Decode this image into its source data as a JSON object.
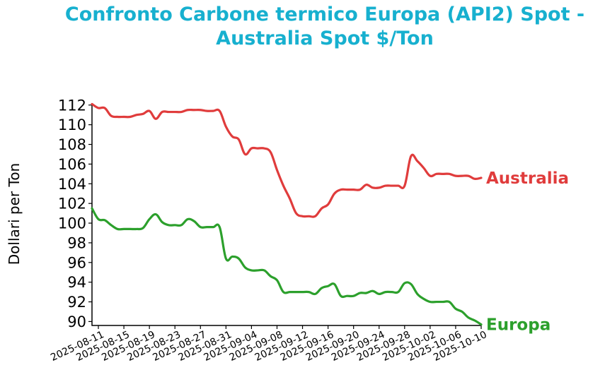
{
  "chart_data": {
    "type": "line",
    "title_line1": "Confronto Carbone termico Europa (API2) Spot -",
    "title_line2": "Australia Spot $/Ton",
    "ylabel": "Dollari per Ton",
    "xlabel": "",
    "ylim": [
      89.6,
      112.2
    ],
    "xlim": [
      "2025-08-10",
      "2025-10-10"
    ],
    "y_ticks": [
      90,
      92,
      94,
      96,
      98,
      100,
      102,
      104,
      106,
      108,
      110,
      112
    ],
    "x_ticks": [
      "2025-08-11",
      "2025-08-15",
      "2025-08-19",
      "2025-08-23",
      "2025-08-27",
      "2025-08-31",
      "2025-09-04",
      "2025-09-08",
      "2025-09-12",
      "2025-09-16",
      "2025-09-20",
      "2025-09-24",
      "2025-09-28",
      "2025-10-02",
      "2025-10-06",
      "2025-10-10"
    ],
    "grid": false,
    "legend": "none",
    "series": [
      {
        "name": "Australia",
        "color": "#e03c3c",
        "points": [
          [
            "2025-08-10",
            112.1
          ],
          [
            "2025-08-11",
            111.7
          ],
          [
            "2025-08-12",
            111.7
          ],
          [
            "2025-08-13",
            110.9
          ],
          [
            "2025-08-14",
            110.8
          ],
          [
            "2025-08-15",
            110.8
          ],
          [
            "2025-08-16",
            110.8
          ],
          [
            "2025-08-17",
            111.0
          ],
          [
            "2025-08-18",
            111.1
          ],
          [
            "2025-08-19",
            111.4
          ],
          [
            "2025-08-20",
            110.6
          ],
          [
            "2025-08-21",
            111.3
          ],
          [
            "2025-08-22",
            111.3
          ],
          [
            "2025-08-23",
            111.3
          ],
          [
            "2025-08-24",
            111.3
          ],
          [
            "2025-08-25",
            111.5
          ],
          [
            "2025-08-26",
            111.5
          ],
          [
            "2025-08-27",
            111.5
          ],
          [
            "2025-08-28",
            111.4
          ],
          [
            "2025-08-29",
            111.4
          ],
          [
            "2025-08-30",
            111.4
          ],
          [
            "2025-08-31",
            109.8
          ],
          [
            "2025-09-01",
            108.8
          ],
          [
            "2025-09-02",
            108.5
          ],
          [
            "2025-09-03",
            107.0
          ],
          [
            "2025-09-04",
            107.6
          ],
          [
            "2025-09-05",
            107.6
          ],
          [
            "2025-09-06",
            107.6
          ],
          [
            "2025-09-07",
            107.2
          ],
          [
            "2025-09-08",
            105.4
          ],
          [
            "2025-09-09",
            103.8
          ],
          [
            "2025-09-10",
            102.5
          ],
          [
            "2025-09-11",
            101.0
          ],
          [
            "2025-09-12",
            100.7
          ],
          [
            "2025-09-13",
            100.7
          ],
          [
            "2025-09-14",
            100.7
          ],
          [
            "2025-09-15",
            101.5
          ],
          [
            "2025-09-16",
            101.9
          ],
          [
            "2025-09-17",
            103.0
          ],
          [
            "2025-09-18",
            103.4
          ],
          [
            "2025-09-19",
            103.4
          ],
          [
            "2025-09-20",
            103.4
          ],
          [
            "2025-09-21",
            103.4
          ],
          [
            "2025-09-22",
            103.9
          ],
          [
            "2025-09-23",
            103.6
          ],
          [
            "2025-09-24",
            103.6
          ],
          [
            "2025-09-25",
            103.8
          ],
          [
            "2025-09-26",
            103.8
          ],
          [
            "2025-09-27",
            103.8
          ],
          [
            "2025-09-28",
            103.8
          ],
          [
            "2025-09-29",
            106.8
          ],
          [
            "2025-09-30",
            106.3
          ],
          [
            "2025-10-01",
            105.6
          ],
          [
            "2025-10-02",
            104.8
          ],
          [
            "2025-10-03",
            105.0
          ],
          [
            "2025-10-04",
            105.0
          ],
          [
            "2025-10-05",
            105.0
          ],
          [
            "2025-10-06",
            104.8
          ],
          [
            "2025-10-07",
            104.8
          ],
          [
            "2025-10-08",
            104.8
          ],
          [
            "2025-10-09",
            104.5
          ],
          [
            "2025-10-10",
            104.6
          ]
        ]
      },
      {
        "name": "Europa",
        "color": "#2ca02c",
        "points": [
          [
            "2025-08-10",
            101.5
          ],
          [
            "2025-08-11",
            100.4
          ],
          [
            "2025-08-12",
            100.3
          ],
          [
            "2025-08-13",
            99.8
          ],
          [
            "2025-08-14",
            99.4
          ],
          [
            "2025-08-15",
            99.4
          ],
          [
            "2025-08-16",
            99.4
          ],
          [
            "2025-08-17",
            99.4
          ],
          [
            "2025-08-18",
            99.5
          ],
          [
            "2025-08-19",
            100.4
          ],
          [
            "2025-08-20",
            100.9
          ],
          [
            "2025-08-21",
            100.1
          ],
          [
            "2025-08-22",
            99.8
          ],
          [
            "2025-08-23",
            99.8
          ],
          [
            "2025-08-24",
            99.8
          ],
          [
            "2025-08-25",
            100.4
          ],
          [
            "2025-08-26",
            100.2
          ],
          [
            "2025-08-27",
            99.6
          ],
          [
            "2025-08-28",
            99.6
          ],
          [
            "2025-08-29",
            99.6
          ],
          [
            "2025-08-30",
            99.6
          ],
          [
            "2025-08-31",
            96.4
          ],
          [
            "2025-09-01",
            96.6
          ],
          [
            "2025-09-02",
            96.4
          ],
          [
            "2025-09-03",
            95.5
          ],
          [
            "2025-09-04",
            95.2
          ],
          [
            "2025-09-05",
            95.2
          ],
          [
            "2025-09-06",
            95.2
          ],
          [
            "2025-09-07",
            94.6
          ],
          [
            "2025-09-08",
            94.2
          ],
          [
            "2025-09-09",
            93.0
          ],
          [
            "2025-09-10",
            93.0
          ],
          [
            "2025-09-11",
            93.0
          ],
          [
            "2025-09-12",
            93.0
          ],
          [
            "2025-09-13",
            93.0
          ],
          [
            "2025-09-14",
            92.8
          ],
          [
            "2025-09-15",
            93.4
          ],
          [
            "2025-09-16",
            93.6
          ],
          [
            "2025-09-17",
            93.8
          ],
          [
            "2025-09-18",
            92.6
          ],
          [
            "2025-09-19",
            92.6
          ],
          [
            "2025-09-20",
            92.6
          ],
          [
            "2025-09-21",
            92.9
          ],
          [
            "2025-09-22",
            92.9
          ],
          [
            "2025-09-23",
            93.1
          ],
          [
            "2025-09-24",
            92.8
          ],
          [
            "2025-09-25",
            93.0
          ],
          [
            "2025-09-26",
            93.0
          ],
          [
            "2025-09-27",
            93.0
          ],
          [
            "2025-09-28",
            93.9
          ],
          [
            "2025-09-29",
            93.8
          ],
          [
            "2025-09-30",
            92.8
          ],
          [
            "2025-10-01",
            92.3
          ],
          [
            "2025-10-02",
            92.0
          ],
          [
            "2025-10-03",
            92.0
          ],
          [
            "2025-10-04",
            92.0
          ],
          [
            "2025-10-05",
            92.0
          ],
          [
            "2025-10-06",
            91.3
          ],
          [
            "2025-10-07",
            91.0
          ],
          [
            "2025-10-08",
            90.4
          ],
          [
            "2025-10-09",
            90.1
          ],
          [
            "2025-10-10",
            89.7
          ]
        ]
      }
    ]
  }
}
